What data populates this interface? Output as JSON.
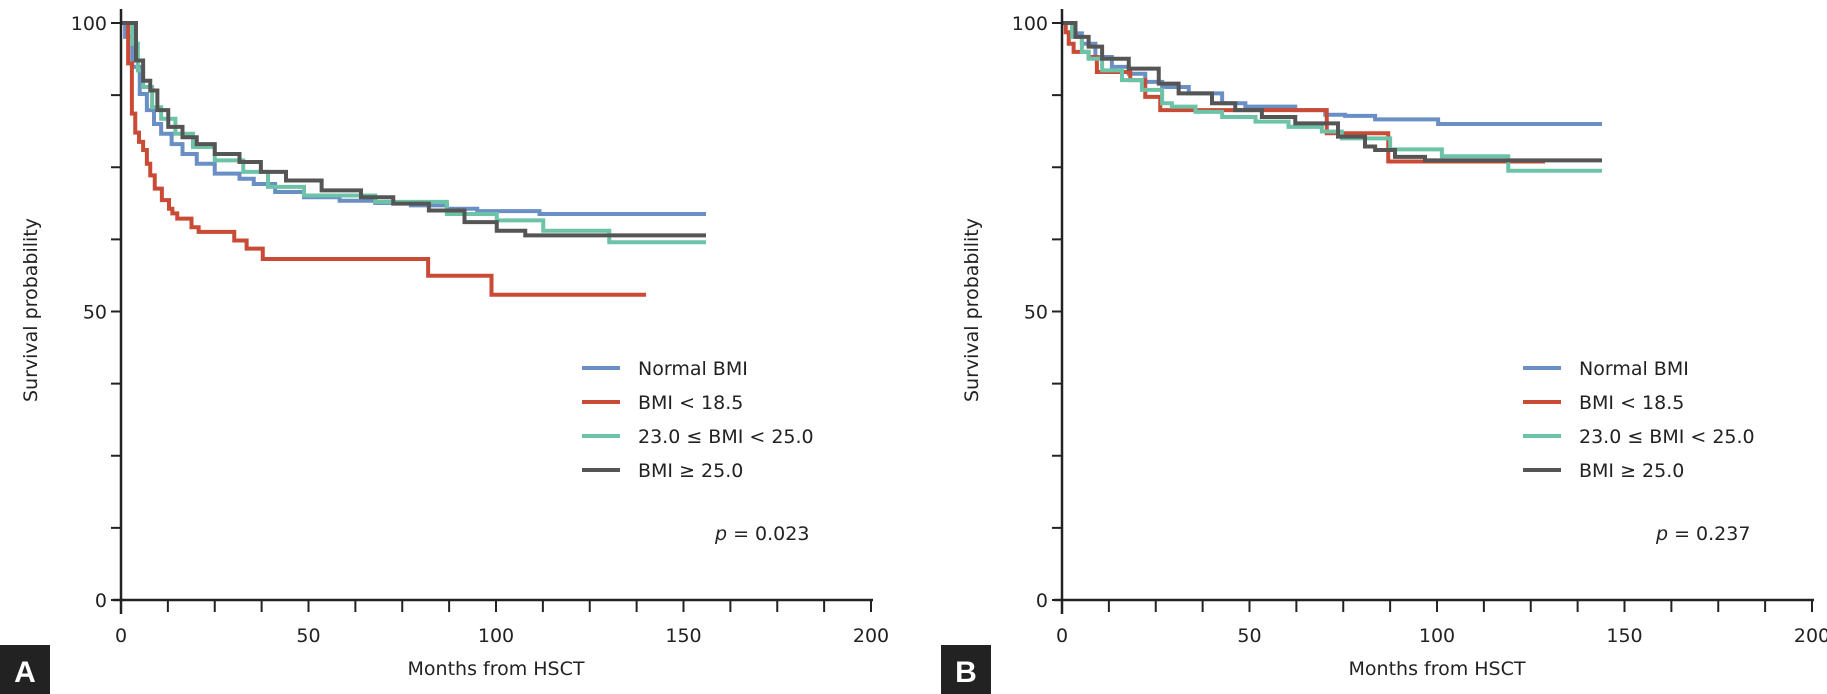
{
  "chart_data": [
    {
      "type": "line",
      "panel_label": "A",
      "xlabel": "Months from HSCT",
      "ylabel": "Survival probability",
      "xlim": [
        0,
        200
      ],
      "ylim": [
        0,
        100
      ],
      "x_ticks": [
        0,
        50,
        100,
        150,
        200
      ],
      "y_ticks": [
        0,
        50,
        100
      ],
      "minor_tick_step": 12.5,
      "grid": false,
      "legend_placement": "lower-right",
      "annotation": {
        "p_label": "p",
        "p_value": "= 0.023"
      },
      "series": [
        {
          "name": "Normal BMI",
          "color": "#6a8fc4",
          "points": [
            [
              0,
              100
            ],
            [
              1.1,
              97.6
            ],
            [
              3,
              92.4
            ],
            [
              5,
              87.7
            ],
            [
              6.9,
              84.9
            ],
            [
              8.8,
              82.5
            ],
            [
              10.7,
              80.8
            ],
            [
              13.5,
              79
            ],
            [
              16.4,
              77.3
            ],
            [
              20.2,
              75.6
            ],
            [
              25,
              73.9
            ],
            [
              31.6,
              73
            ],
            [
              35.4,
              72.1
            ],
            [
              41.1,
              70.7
            ],
            [
              48.8,
              69.8
            ],
            [
              58.3,
              69.2
            ],
            [
              67.8,
              68.8
            ],
            [
              77.3,
              68.4
            ],
            [
              86.9,
              67.8
            ],
            [
              95,
              67.4
            ],
            [
              111.6,
              66.9
            ],
            [
              156,
              66.9
            ]
          ]
        },
        {
          "name": "BMI < 18.5",
          "color": "#c94a35",
          "points": [
            [
              0,
              100
            ],
            [
              1.9,
              93
            ],
            [
              2.9,
              84.3
            ],
            [
              3.8,
              81
            ],
            [
              4.8,
              79.4
            ],
            [
              5.9,
              78
            ],
            [
              6.9,
              75.6
            ],
            [
              7.8,
              73.6
            ],
            [
              9,
              71.3
            ],
            [
              10.9,
              69.3
            ],
            [
              12.8,
              67.8
            ],
            [
              13.7,
              67
            ],
            [
              15,
              66.1
            ],
            [
              18.8,
              64.6
            ],
            [
              20.7,
              63.8
            ],
            [
              30.2,
              62.3
            ],
            [
              33.5,
              60.9
            ],
            [
              37.8,
              59.1
            ],
            [
              81.9,
              56.2
            ],
            [
              98.8,
              52.9
            ],
            [
              140,
              52.9
            ]
          ]
        },
        {
          "name": "23.0 ≤ BMI < 25.0",
          "color": "#6cc3a8",
          "points": [
            [
              0,
              100
            ],
            [
              3,
              96.4
            ],
            [
              4.5,
              91.8
            ],
            [
              5.9,
              88.9
            ],
            [
              8.3,
              85.4
            ],
            [
              10.7,
              83.4
            ],
            [
              14.5,
              80.8
            ],
            [
              19.2,
              78.5
            ],
            [
              25,
              76.2
            ],
            [
              32.6,
              74.2
            ],
            [
              39.2,
              71.6
            ],
            [
              48.8,
              70.1
            ],
            [
              67.8,
              69
            ],
            [
              86.9,
              66.9
            ],
            [
              100.2,
              65.8
            ],
            [
              112.6,
              64
            ],
            [
              130.2,
              62
            ],
            [
              156,
              62
            ]
          ]
        },
        {
          "name": "BMI ≥ 25.0",
          "color": "#555555",
          "points": [
            [
              0,
              100
            ],
            [
              4,
              93.5
            ],
            [
              5.9,
              90
            ],
            [
              7.8,
              88.3
            ],
            [
              9.7,
              84.9
            ],
            [
              12.6,
              82
            ],
            [
              16.4,
              80.2
            ],
            [
              20.2,
              79
            ],
            [
              25,
              77.3
            ],
            [
              31.6,
              75.9
            ],
            [
              37.3,
              74.2
            ],
            [
              44,
              72.7
            ],
            [
              53.5,
              71
            ],
            [
              64,
              69.8
            ],
            [
              72.6,
              68.7
            ],
            [
              82.1,
              67.5
            ],
            [
              91.6,
              65.5
            ],
            [
              100.2,
              64
            ],
            [
              107.8,
              63.2
            ],
            [
              156,
              63.2
            ]
          ]
        }
      ]
    },
    {
      "type": "line",
      "panel_label": "B",
      "xlabel": "Months from HSCT",
      "ylabel": "Survival probability",
      "xlim": [
        0,
        200
      ],
      "ylim": [
        0,
        100
      ],
      "x_ticks": [
        0,
        50,
        100,
        150,
        200
      ],
      "y_ticks": [
        0,
        50,
        100
      ],
      "minor_tick_step": 12.5,
      "grid": false,
      "legend_placement": "lower-right",
      "annotation": {
        "p_label": "p",
        "p_value": "= 0.237"
      },
      "series": [
        {
          "name": "Normal BMI",
          "color": "#6a8fc4",
          "points": [
            [
              0,
              100
            ],
            [
              2.7,
              98.2
            ],
            [
              5.3,
              96.4
            ],
            [
              8.9,
              94.1
            ],
            [
              13.3,
              92.4
            ],
            [
              17.8,
              91.2
            ],
            [
              22.2,
              89.8
            ],
            [
              26.7,
              88.9
            ],
            [
              33.8,
              87.8
            ],
            [
              42.7,
              86.1
            ],
            [
              48.9,
              85.5
            ],
            [
              62.2,
              84.9
            ],
            [
              70.2,
              84.1
            ],
            [
              75.5,
              83.9
            ],
            [
              83.5,
              83.3
            ],
            [
              100.3,
              82.5
            ],
            [
              144,
              82.5
            ]
          ]
        },
        {
          "name": "BMI < 18.5",
          "color": "#c94a35",
          "points": [
            [
              0,
              100
            ],
            [
              1,
              98.4
            ],
            [
              1.8,
              96.4
            ],
            [
              3.1,
              95
            ],
            [
              7.1,
              94.1
            ],
            [
              9.3,
              91.5
            ],
            [
              18.2,
              90.1
            ],
            [
              22.2,
              87.2
            ],
            [
              26.2,
              84.9
            ],
            [
              70.6,
              80.9
            ],
            [
              87,
              76
            ],
            [
              128.8,
              76
            ]
          ]
        },
        {
          "name": "23.0 ≤ BMI < 25.0",
          "color": "#6cc3a8",
          "points": [
            [
              0,
              100
            ],
            [
              2.7,
              97.6
            ],
            [
              5.3,
              95
            ],
            [
              7.1,
              93.8
            ],
            [
              10.7,
              91.8
            ],
            [
              16,
              90.1
            ],
            [
              21.3,
              88.4
            ],
            [
              26.7,
              86.1
            ],
            [
              29.3,
              85.5
            ],
            [
              35.6,
              84.6
            ],
            [
              42.7,
              83.7
            ],
            [
              51.6,
              82.9
            ],
            [
              60.4,
              82
            ],
            [
              69.3,
              81.2
            ],
            [
              74.6,
              80
            ],
            [
              87.5,
              78.1
            ],
            [
              101.3,
              76.9
            ],
            [
              119,
              74.4
            ],
            [
              144,
              74.4
            ]
          ]
        },
        {
          "name": "BMI ≥ 25.0",
          "color": "#555555",
          "points": [
            [
              0,
              100
            ],
            [
              3.6,
              97.6
            ],
            [
              7.1,
              95.9
            ],
            [
              10.7,
              93.8
            ],
            [
              17.8,
              92.1
            ],
            [
              25.8,
              89.5
            ],
            [
              31.1,
              87.8
            ],
            [
              40,
              86.1
            ],
            [
              46.2,
              84.9
            ],
            [
              53.3,
              83.7
            ],
            [
              62.2,
              82.6
            ],
            [
              73.6,
              80.3
            ],
            [
              80.8,
              78.6
            ],
            [
              83.5,
              78
            ],
            [
              88.8,
              76.8
            ],
            [
              96.8,
              76.2
            ],
            [
              144,
              76.2
            ]
          ]
        }
      ]
    }
  ]
}
